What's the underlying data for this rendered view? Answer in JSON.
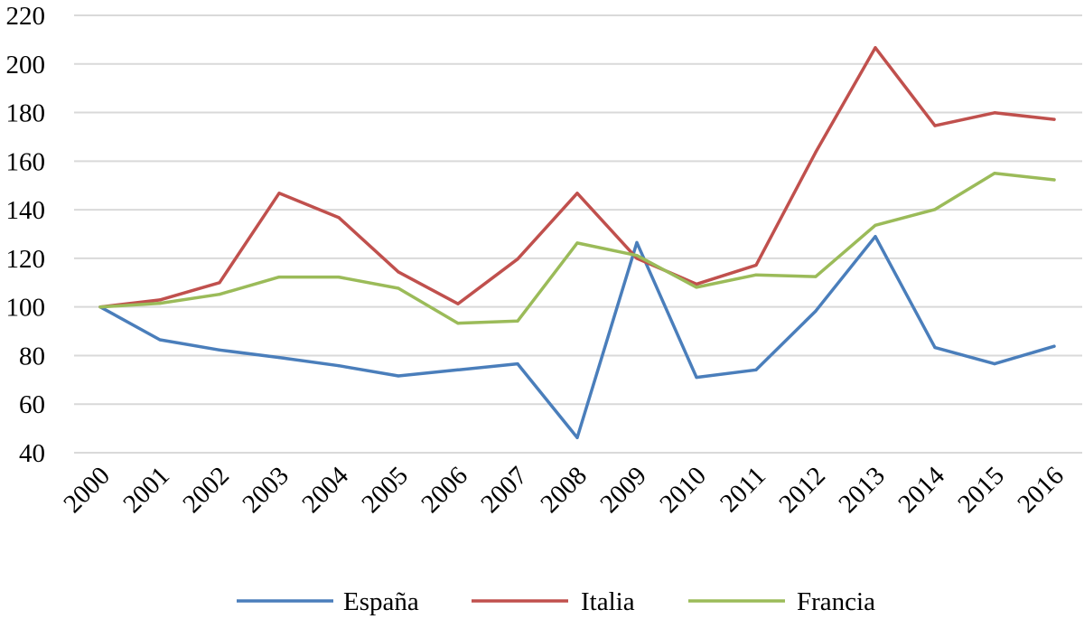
{
  "chart_data": {
    "type": "line",
    "title": "",
    "xlabel": "",
    "ylabel": "",
    "categories": [
      "2000",
      "2001",
      "2002",
      "2003",
      "2004",
      "2005",
      "2006",
      "2007",
      "2008",
      "2009",
      "2010",
      "2011",
      "2012",
      "2013",
      "2014",
      "2015",
      "2016"
    ],
    "ylim": [
      40,
      220
    ],
    "yticks": [
      40,
      60,
      80,
      100,
      120,
      140,
      160,
      180,
      200,
      220
    ],
    "grid": true,
    "legend_position": "bottom",
    "series": [
      {
        "name": "España",
        "color": "#4a7ebb",
        "values": [
          100,
          86.5,
          82.3,
          79.2,
          75.8,
          71.6,
          74.1,
          76.6,
          46.2,
          126.5,
          71.0,
          74.1,
          98.3,
          129.0,
          83.3,
          76.6,
          83.8
        ]
      },
      {
        "name": "Italia",
        "color": "#c0504d",
        "values": [
          100,
          102.9,
          110.0,
          146.8,
          136.8,
          114.4,
          101.3,
          119.7,
          146.8,
          120.0,
          109.4,
          117.2,
          163.7,
          206.7,
          174.6,
          179.9,
          177.2
        ]
      },
      {
        "name": "Francia",
        "color": "#9bbb59",
        "values": [
          100,
          101.5,
          105.2,
          112.3,
          112.3,
          107.7,
          93.3,
          94.2,
          126.3,
          121.2,
          108.1,
          113.2,
          112.5,
          133.6,
          140.1,
          155.0,
          152.3
        ]
      }
    ]
  }
}
